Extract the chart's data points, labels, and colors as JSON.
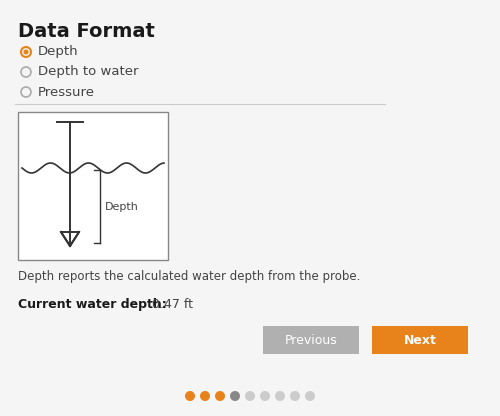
{
  "title": "Data Format",
  "radio_options": [
    "Depth",
    "Depth to water",
    "Pressure"
  ],
  "radio_selected": 0,
  "diagram_label": "Depth",
  "description": "Depth reports the calculated water depth from the probe.",
  "current_label": "Current water depth:",
  "current_value": "0.47 ft",
  "btn_previous": "Previous",
  "btn_next": "Next",
  "btn_prev_color": "#b0b0b0",
  "btn_next_color": "#e8821a",
  "btn_text_color": "#ffffff",
  "bg_color": "#f5f5f5",
  "title_color": "#1a1a1a",
  "text_color": "#444444",
  "radio_selected_color": "#e8821a",
  "radio_unselected_color": "#aaaaaa",
  "dot_colors": [
    "#e8821a",
    "#e8821a",
    "#e8821a",
    "#888888",
    "#cccccc",
    "#cccccc",
    "#cccccc",
    "#cccccc",
    "#cccccc"
  ],
  "separator_color": "#cccccc",
  "box_edge_color": "#888888",
  "wave_color": "#333333",
  "line_color": "#333333",
  "diagram_text_color": "#444444"
}
